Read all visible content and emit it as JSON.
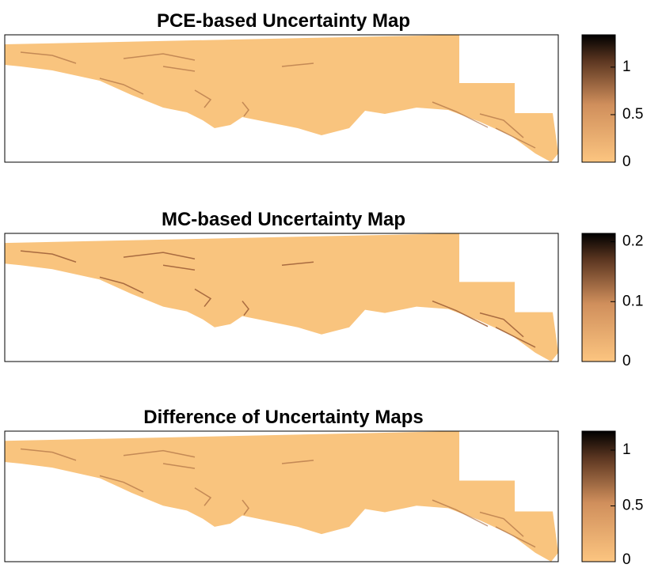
{
  "chart_data": [
    {
      "type": "heatmap",
      "title": "PCE-based Uncertainty Map",
      "clim": [
        0,
        1.34
      ],
      "cticks": [
        0,
        0.5,
        1
      ]
    },
    {
      "type": "heatmap",
      "title": "MC-based Uncertainty Map",
      "clim": [
        0,
        0.214
      ],
      "cticks": [
        0,
        0.1,
        0.2
      ]
    },
    {
      "type": "heatmap",
      "title": "Difference of Uncertainty Maps",
      "clim": [
        0,
        1.17
      ],
      "cticks": [
        0,
        0.5,
        1
      ]
    }
  ]
}
